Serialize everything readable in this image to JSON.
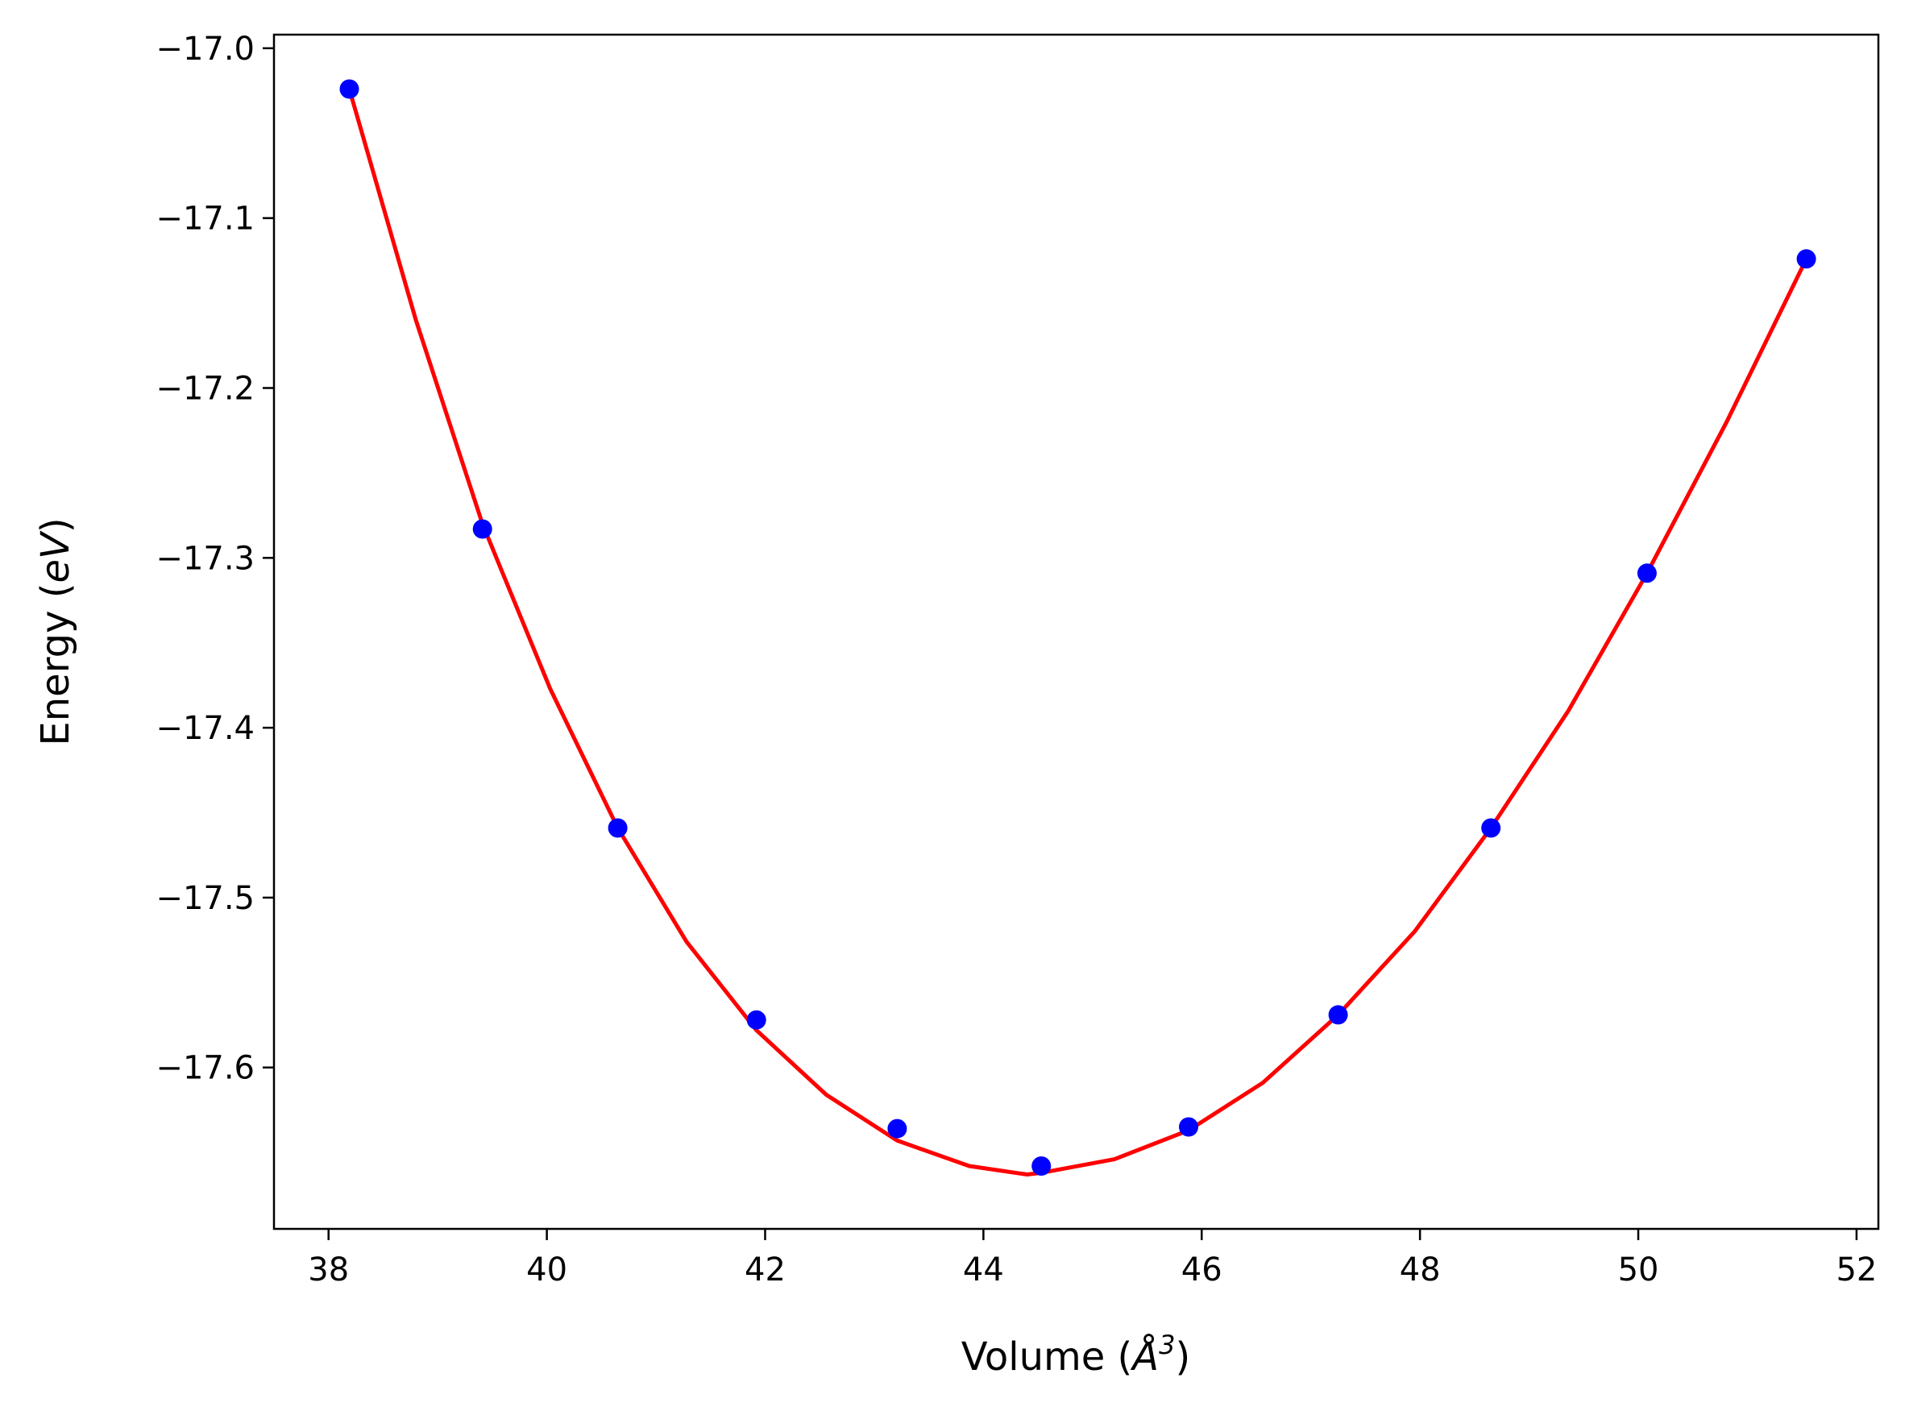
{
  "chart_data": {
    "type": "scatter",
    "xlabel": "Volume (",
    "xlabel_unit": "Å",
    "xlabel_exp": "3",
    "xlabel_close": ")",
    "ylabel": "Energy (",
    "ylabel_unit": "eV",
    "ylabel_close": ")",
    "xlim": [
      37.5,
      52.2
    ],
    "ylim": [
      -17.695,
      -16.992
    ],
    "xticks": [
      38,
      40,
      42,
      44,
      46,
      48,
      50,
      52
    ],
    "xtick_labels": [
      "38",
      "40",
      "42",
      "44",
      "46",
      "48",
      "50",
      "52"
    ],
    "yticks": [
      -17.0,
      -17.1,
      -17.2,
      -17.3,
      -17.4,
      -17.5,
      -17.6
    ],
    "ytick_labels": [
      "−17.0",
      "−17.1",
      "−17.2",
      "−17.3",
      "−17.4",
      "−17.5",
      "−17.6"
    ],
    "grid": false,
    "series": [
      {
        "kind": "points",
        "color": "#0000ff",
        "x": [
          38.19,
          39.41,
          40.65,
          41.92,
          43.21,
          44.53,
          45.88,
          47.25,
          48.65,
          50.08,
          51.54
        ],
        "y": [
          -17.024,
          -17.283,
          -17.459,
          -17.572,
          -17.636,
          -17.658,
          -17.635,
          -17.569,
          -17.459,
          -17.309,
          -17.124
        ]
      },
      {
        "kind": "fit-line",
        "color": "#ff0000",
        "x": [
          38.19,
          38.8,
          39.41,
          40.03,
          40.65,
          41.28,
          41.92,
          42.56,
          43.21,
          43.87,
          44.4,
          44.53,
          45.2,
          45.88,
          46.56,
          47.25,
          47.95,
          48.65,
          49.36,
          50.08,
          50.81,
          51.54
        ],
        "y": [
          -17.024,
          -17.16,
          -17.28,
          -17.377,
          -17.459,
          -17.526,
          -17.578,
          -17.616,
          -17.643,
          -17.658,
          -17.663,
          -17.662,
          -17.654,
          -17.637,
          -17.609,
          -17.569,
          -17.52,
          -17.459,
          -17.39,
          -17.309,
          -17.22,
          -17.124
        ]
      }
    ]
  }
}
